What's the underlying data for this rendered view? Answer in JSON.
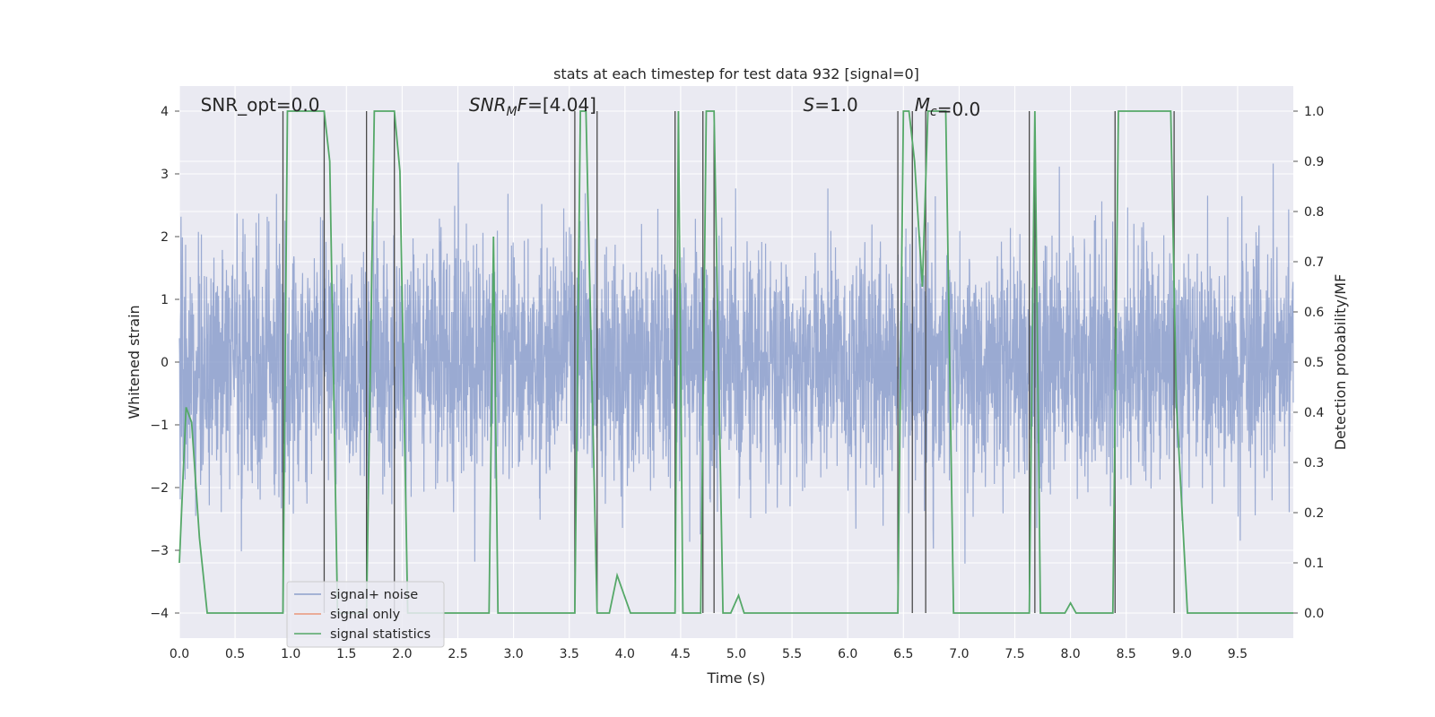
{
  "chart_data": {
    "type": "line",
    "title": "stats at each timestep for test data 932 [signal=0]",
    "xlabel": "Time (s)",
    "ylabel": "Whitened strain",
    "y2label": "Detection probability/MF",
    "xlim": [
      0,
      10
    ],
    "ylim": [
      -4.4,
      4.4
    ],
    "y2lim": [
      -0.05,
      1.05
    ],
    "xticks": [
      "0.0",
      "0.5",
      "1.0",
      "1.5",
      "2.0",
      "2.5",
      "3.0",
      "3.5",
      "4.0",
      "4.5",
      "5.0",
      "5.5",
      "6.0",
      "6.5",
      "7.0",
      "7.5",
      "8.0",
      "8.5",
      "9.0",
      "9.5"
    ],
    "yticks": [
      "−4",
      "−3",
      "−2",
      "−1",
      "0",
      "1",
      "2",
      "3",
      "4"
    ],
    "y2ticks": [
      "0.0",
      "0.1",
      "0.2",
      "0.3",
      "0.4",
      "0.5",
      "0.6",
      "0.7",
      "0.8",
      "0.9",
      "1.0"
    ],
    "annotations": [
      {
        "prefix": "SNR_opt",
        "sub": "",
        "value": "=0.0",
        "x": 0.19
      },
      {
        "prefix": "SNR",
        "sub": "M",
        "suffix": "F",
        "value": "=[4.04]",
        "x": 2.6
      },
      {
        "prefix": "S",
        "sub": "",
        "value": "=1.0",
        "x": 5.6
      },
      {
        "prefix": "M",
        "sub": "c",
        "value": "=0.0",
        "x": 6.6
      }
    ],
    "legend": {
      "placement": "lower-left",
      "entries": [
        {
          "label": "signal+ noise",
          "color": "#8da0cb"
        },
        {
          "label": "signal only",
          "color": "#e9967a"
        },
        {
          "label": "signal statistics",
          "color": "#55a868"
        }
      ]
    },
    "series": [
      {
        "name": "signal+ noise",
        "color": "#8c9fcc",
        "style": "dense-noise",
        "sigma": 0.95
      },
      {
        "name": "signal only",
        "color": "#e9967a",
        "values": []
      },
      {
        "name": "signal statistics",
        "color": "#55a868",
        "axis": "right",
        "x": [
          0.0,
          0.06,
          0.11,
          0.18,
          0.25,
          0.93,
          0.97,
          1.02,
          1.3,
          1.35,
          1.42,
          1.68,
          1.75,
          1.93,
          1.98,
          2.05,
          2.78,
          2.82,
          2.86,
          2.9,
          3.55,
          3.6,
          3.65,
          3.75,
          3.8,
          3.86,
          3.93,
          4.05,
          4.45,
          4.48,
          4.52,
          4.57,
          4.68,
          4.73,
          4.8,
          4.88,
          4.95,
          5.02,
          5.07,
          6.45,
          6.5,
          6.55,
          6.6,
          6.67,
          6.72,
          6.78,
          6.88,
          6.95,
          7.63,
          7.68,
          7.73,
          7.95,
          8.0,
          8.05,
          8.38,
          8.43,
          8.9,
          8.95,
          9.05,
          10.0
        ],
        "y": [
          0.1,
          0.41,
          0.38,
          0.15,
          0.0,
          0.0,
          1.0,
          1.0,
          1.0,
          0.9,
          0.0,
          0.0,
          1.0,
          1.0,
          0.88,
          0.0,
          0.0,
          0.75,
          0.0,
          0.0,
          0.0,
          1.0,
          1.0,
          0.0,
          0.0,
          0.0,
          0.075,
          0.0,
          0.0,
          1.0,
          0.0,
          0.0,
          0.0,
          1.0,
          1.0,
          0.0,
          0.0,
          0.035,
          0.0,
          0.0,
          1.0,
          1.0,
          0.9,
          0.65,
          1.0,
          1.0,
          1.0,
          0.0,
          0.0,
          1.0,
          0.0,
          0.0,
          0.02,
          0.0,
          0.0,
          1.0,
          1.0,
          0.42,
          0.0,
          0.0
        ]
      }
    ],
    "vertical_markers": [
      0.93,
      1.3,
      1.68,
      1.93,
      3.55,
      3.75,
      4.45,
      4.7,
      4.8,
      6.45,
      6.58,
      6.7,
      7.63,
      7.68,
      8.4,
      8.93
    ]
  }
}
